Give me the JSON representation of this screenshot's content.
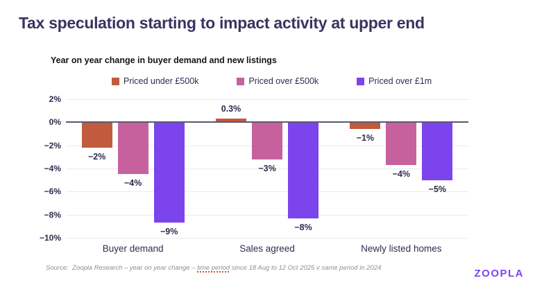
{
  "header": {
    "title": "Tax speculation starting to impact activity at upper end"
  },
  "chart_data": {
    "type": "bar",
    "title": "Year on year change in buyer demand and new listings",
    "categories": [
      "Buyer demand",
      "Sales agreed",
      "Newly listed homes"
    ],
    "series": [
      {
        "name": "Priced under £500k",
        "color": "#c05b3e",
        "values": [
          -2.2,
          0.3,
          -0.6
        ],
        "labels": [
          "−2%",
          "0.3%",
          "−1%"
        ]
      },
      {
        "name": "Priced over £500k",
        "color": "#c7619e",
        "values": [
          -4.5,
          -3.2,
          -3.7
        ],
        "labels": [
          "−4%",
          "−3%",
          "−4%"
        ]
      },
      {
        "name": "Priced over £1m",
        "color": "#7c44ec",
        "values": [
          -8.7,
          -8.3,
          -5.0
        ],
        "labels": [
          "−9%",
          "−8%",
          "−5%"
        ]
      }
    ],
    "y_axis": {
      "tick_labels": [
        "2%",
        "0%",
        "−2%",
        "−4%",
        "−6%",
        "−8%",
        "−10%"
      ],
      "tick_values": [
        2,
        0,
        -2,
        -4,
        -6,
        -8,
        -10
      ],
      "max": 2,
      "min": -10
    },
    "ylim": [
      -10,
      2
    ],
    "grid": true,
    "legend_position": "top"
  },
  "footer": {
    "source_prefix": "Source:  Zoopla Research – year on year change – ",
    "source_highlight": "time period",
    "source_suffix": " since 18 Aug to 12 Oct 2025 v same period in 2024",
    "logo_text": "zoopla"
  },
  "colors": {
    "title_text": "#3b3260",
    "axis_text": "#2e2b4d",
    "gridline": "#ebe9f2",
    "zero_line": "#5b5770",
    "source_text": "#8f8f8f",
    "logo_purple": "#7d43f2"
  }
}
